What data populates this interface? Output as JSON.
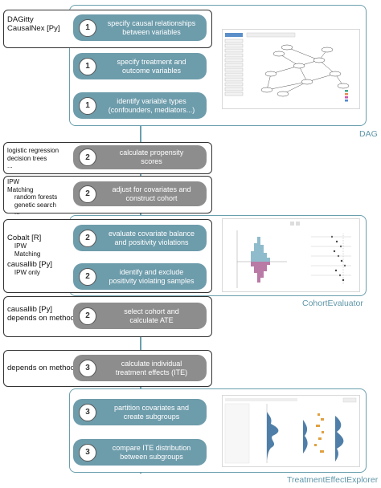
{
  "steps": [
    {
      "num": "1",
      "label": "specify causal relationships\nbetween variables",
      "color": "teal"
    },
    {
      "num": "1",
      "label": "specify treatment and\noutcome variables",
      "color": "teal"
    },
    {
      "num": "1",
      "label": "identify variable types\n(confounders, mediators...)",
      "color": "teal"
    },
    {
      "num": "2",
      "label": "calculate propensity\nscores",
      "color": "gray"
    },
    {
      "num": "2",
      "label": "adjust for covariates and\nconstruct cohort",
      "color": "gray"
    },
    {
      "num": "2",
      "label": "evaluate covariate balance\nand positivity violations",
      "color": "teal"
    },
    {
      "num": "2",
      "label": "identify and exclude\npositivity violating samples",
      "color": "teal"
    },
    {
      "num": "2",
      "label": "select cohort and\ncalculate ATE",
      "color": "gray"
    },
    {
      "num": "3",
      "label": "calculate individual\ntreatment effects (ITE)",
      "color": "gray"
    },
    {
      "num": "3",
      "label": "partition covariates and\ncreate subgroups",
      "color": "teal"
    },
    {
      "num": "3",
      "label": "compare ITE distribution\nbetween subgroups",
      "color": "teal"
    }
  ],
  "tools": {
    "dagitty": "DAGitty\nCausalNex [Py]",
    "propensity": "logistic regression\ndecision trees\n...",
    "adjust": "IPW\nMatching\n    random forests\n    genetic search\n    ...",
    "cobalt_title": "Cobalt [R]",
    "cobalt_sub": "    IPW\n    Matching",
    "causallib_title": "causallib [Py]",
    "causallib_sub": "    IPW only",
    "ate": "causallib [Py]\ndepends on method",
    "ite": "depends on method"
  },
  "panels": {
    "dag": "DAG",
    "cohort": "CohortEvaluator",
    "tee": "TreatmentEffectExplorer"
  },
  "colors": {
    "teal": "#6d9cab",
    "gray": "#8d8d8d",
    "panel_border": "#6a9fae",
    "panel_label": "#5f96a8"
  }
}
